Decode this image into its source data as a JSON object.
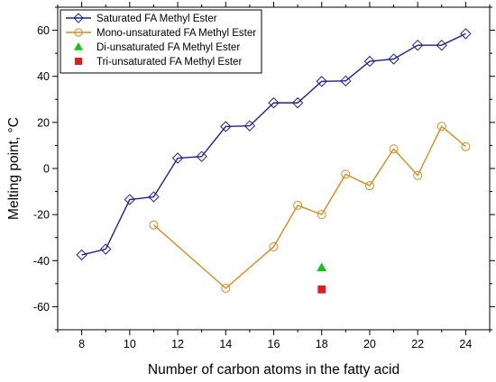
{
  "chart_data": {
    "type": "line",
    "xlabel": "Number of carbon atoms in the fatty acid",
    "ylabel": "Melting point, °C",
    "xlim": [
      7,
      25
    ],
    "ylim": [
      -70,
      70
    ],
    "xticks": [
      8,
      10,
      12,
      14,
      16,
      18,
      20,
      22,
      24
    ],
    "yticks": [
      -60,
      -40,
      -20,
      0,
      20,
      40,
      60
    ],
    "grid": false,
    "legend_position": "top-left",
    "series": [
      {
        "name": "Saturated FA Methyl Ester",
        "color": "#1f1f9e",
        "marker": "diamond-open",
        "line": true,
        "x": [
          8,
          9,
          10,
          11,
          12,
          13,
          14,
          15,
          16,
          17,
          18,
          19,
          20,
          21,
          22,
          23,
          24
        ],
        "y": [
          -37.5,
          -35,
          -13.5,
          -12.3,
          4.5,
          5.2,
          18.2,
          18.5,
          28.5,
          28.5,
          37.8,
          38,
          46.5,
          47.5,
          53.5,
          53.5,
          58.5
        ]
      },
      {
        "name": "Mono-unsaturated FA Methyl Ester",
        "color": "#d98a1c",
        "marker": "circle-open",
        "line": true,
        "x": [
          11,
          14,
          16,
          17,
          18,
          19,
          20,
          21,
          22,
          23,
          24
        ],
        "y": [
          -24.5,
          -52,
          -34,
          -16,
          -20,
          -2.5,
          -7.5,
          8.5,
          -3,
          18.3,
          9.5
        ]
      },
      {
        "name": "Di-unsaturated FA Methyl Ester",
        "color": "#18c018",
        "marker": "triangle-filled",
        "line": false,
        "x": [
          18
        ],
        "y": [
          -43
        ]
      },
      {
        "name": "Tri-unsaturated FA Methyl Ester",
        "color": "#e02020",
        "marker": "square-filled",
        "line": false,
        "x": [
          18
        ],
        "y": [
          -52.5
        ]
      }
    ]
  }
}
